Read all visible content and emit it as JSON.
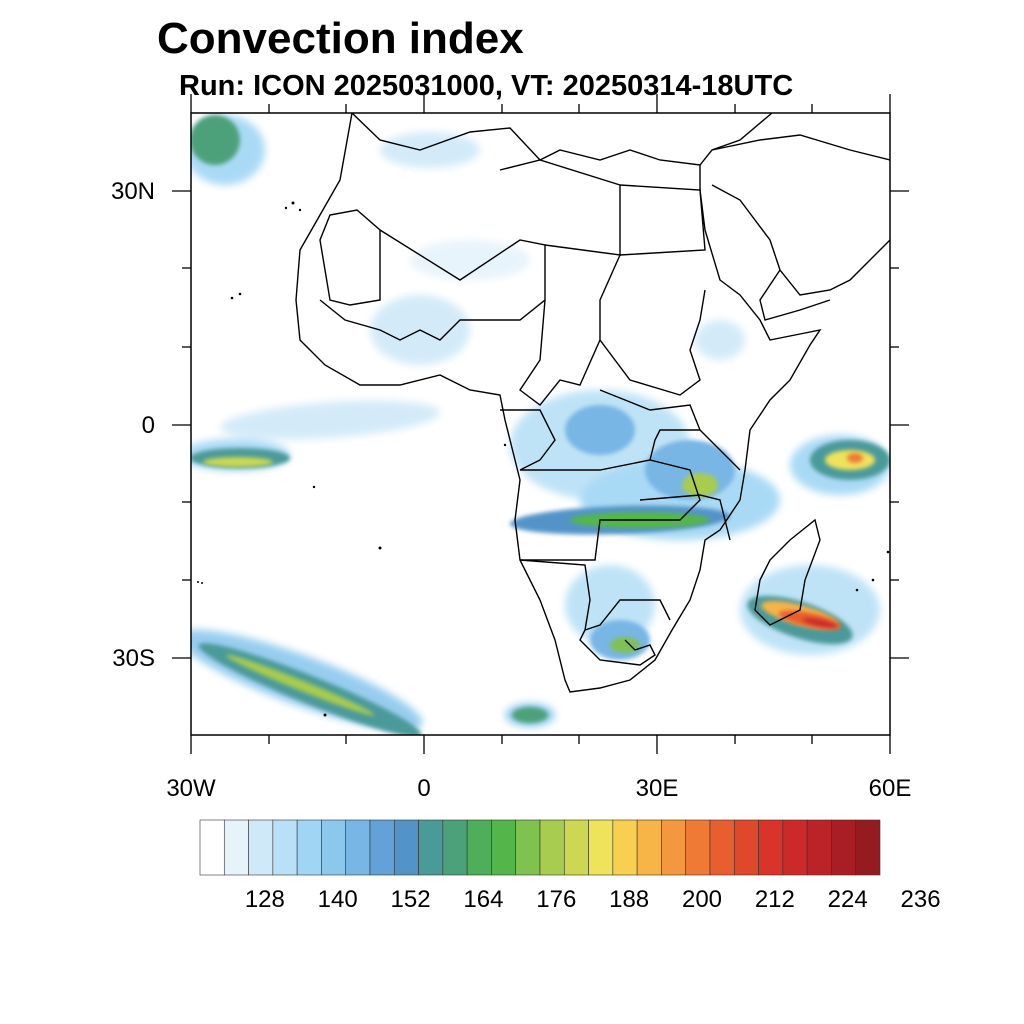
{
  "title": "Convection index",
  "subtitle": "Run: ICON 2025031000,  VT: 20250314-18UTC",
  "map": {
    "projection": "lat-lon",
    "lon_range": [
      -30,
      60
    ],
    "lat_range": [
      -40,
      40
    ],
    "region": "Africa",
    "lat_labels": [
      "30N",
      "0",
      "30S"
    ],
    "lon_labels": [
      "30W",
      "0",
      "30E",
      "60E"
    ]
  },
  "colorbar": {
    "ticks": [
      "128",
      "140",
      "152",
      "164",
      "176",
      "188",
      "200",
      "212",
      "224",
      "236"
    ],
    "colors": [
      "#ffffff",
      "#e6f3fb",
      "#cfe9f8",
      "#b8e0f6",
      "#a0d6f4",
      "#8cc8ee",
      "#78b6e6",
      "#62a2d8",
      "#5294c8",
      "#4b9a9a",
      "#4da17a",
      "#4fae5a",
      "#54b64a",
      "#7fc24f",
      "#a8cc4f",
      "#ccd852",
      "#eee35a",
      "#f9cf52",
      "#f7b447",
      "#f3983e",
      "#ee7a36",
      "#e85f2f",
      "#e0482c",
      "#d9332a",
      "#cc2a2a",
      "#bb2328",
      "#a81e24",
      "#961b20"
    ]
  },
  "features": [
    "convective band over central-southern Africa",
    "intense cell southeast of Madagascar",
    "band over western Indian Ocean",
    "southwest Atlantic frontal band",
    "equatorial Atlantic streak"
  ]
}
